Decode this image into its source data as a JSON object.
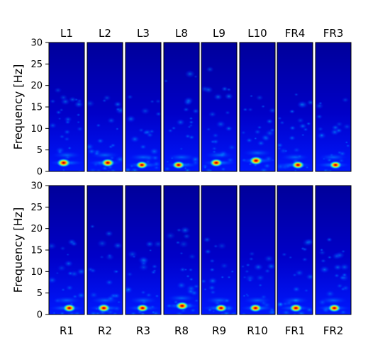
{
  "figure": {
    "ylabel": "Frequency [Hz]"
  },
  "chart_data": [
    {
      "type": "heatmap",
      "row": "top",
      "ylabel": "Frequency [Hz]",
      "ylim": [
        0,
        30
      ],
      "yticks": [
        0,
        5,
        10,
        15,
        20,
        25,
        30
      ],
      "label_position": "top",
      "colormap": "jet",
      "channels": [
        "L1",
        "L2",
        "L3",
        "L8",
        "L9",
        "L10",
        "FR4",
        "FR3"
      ],
      "peak_frequency_hz": [
        2,
        2,
        1.5,
        1.5,
        2,
        2.5,
        1.5,
        1.5
      ],
      "peak_intensity": [
        0.9,
        0.85,
        0.65,
        0.7,
        0.8,
        0.9,
        0.75,
        0.7
      ],
      "spread_hz": [
        5,
        4,
        3.5,
        10,
        10,
        5,
        4,
        3.5
      ]
    },
    {
      "type": "heatmap",
      "row": "bottom",
      "ylabel": "Frequency [Hz]",
      "ylim": [
        0,
        30
      ],
      "yticks": [
        0,
        5,
        10,
        15,
        20,
        25,
        30
      ],
      "label_position": "bottom",
      "colormap": "jet",
      "channels": [
        "R1",
        "R2",
        "R3",
        "R8",
        "R9",
        "R10",
        "FR1",
        "FR2"
      ],
      "peak_frequency_hz": [
        1.5,
        1.5,
        1.5,
        2,
        1.5,
        1.5,
        1.5,
        1.5
      ],
      "peak_intensity": [
        0.75,
        0.8,
        0.7,
        0.85,
        0.7,
        0.75,
        0.8,
        0.75
      ],
      "spread_hz": [
        4,
        8,
        4,
        10,
        4,
        3,
        4,
        4
      ]
    }
  ]
}
